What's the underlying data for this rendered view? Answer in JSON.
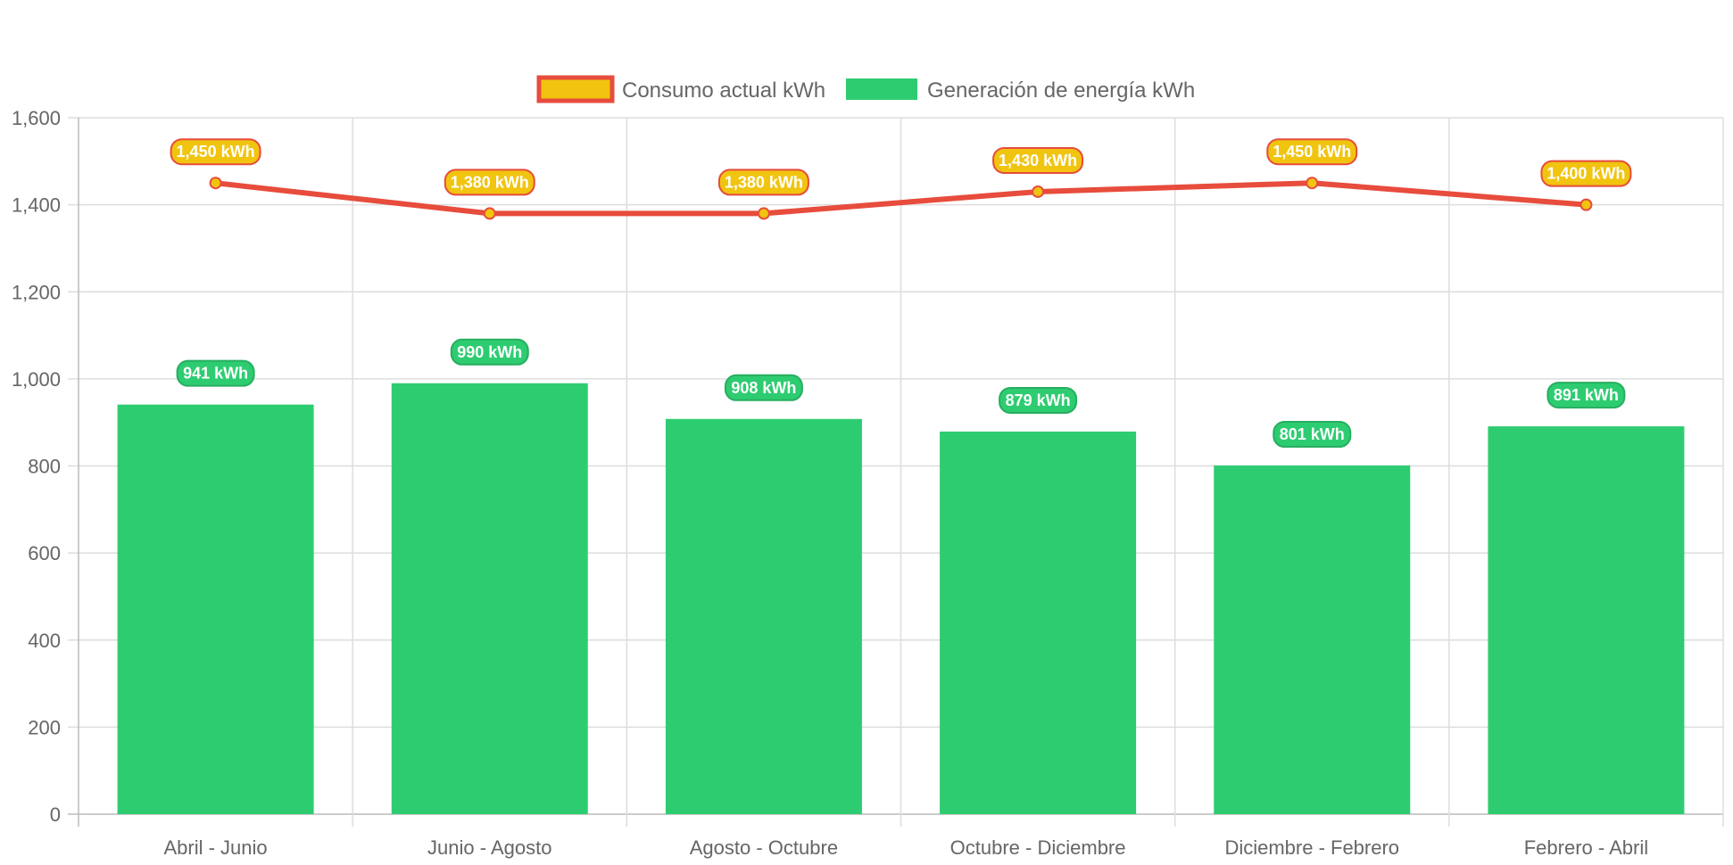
{
  "chart_data": {
    "type": "bar",
    "categories": [
      "Abril - Junio",
      "Junio - Agosto",
      "Agosto - Octubre",
      "Octubre - Diciembre",
      "Diciembre - Febrero",
      "Febrero - Abril"
    ],
    "series": [
      {
        "name": "Consumo actual kWh",
        "type": "line",
        "values": [
          1450,
          1380,
          1380,
          1430,
          1450,
          1400
        ],
        "data_labels": [
          "1,450 kWh",
          "1,380 kWh",
          "1,380 kWh",
          "1,430 kWh",
          "1,450 kWh",
          "1,400 kWh"
        ],
        "color": "#e74c3c",
        "fill_color": "#f1c40f"
      },
      {
        "name": "Generación de energía kWh",
        "type": "bar",
        "values": [
          941,
          990,
          908,
          879,
          801,
          891
        ],
        "data_labels": [
          "941 kWh",
          "990 kWh",
          "908 kWh",
          "879 kWh",
          "801 kWh",
          "891 kWh"
        ],
        "color": "#2ecc71",
        "label_border": "#27ae60"
      }
    ],
    "y_ticks": [
      "0",
      "200",
      "400",
      "600",
      "800",
      "1,000",
      "1,200",
      "1,400",
      "1,600"
    ],
    "ylim": [
      0,
      1600
    ],
    "grid": true,
    "legend_position": "top",
    "title": "",
    "xlabel": "",
    "ylabel": ""
  }
}
